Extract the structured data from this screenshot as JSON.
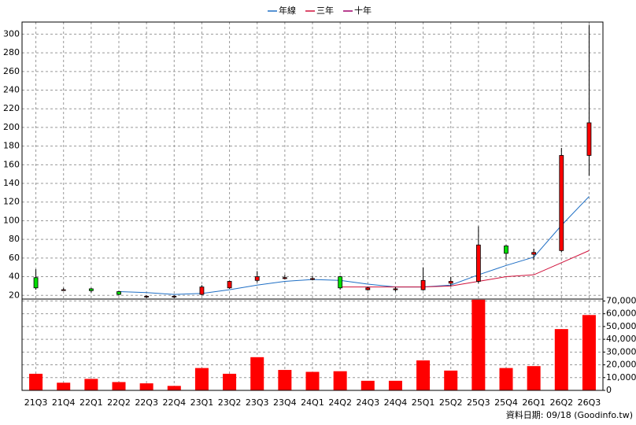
{
  "chart_data": {
    "type": "candlestick",
    "legend": "top",
    "categories": [
      "21Q3",
      "21Q4",
      "22Q1",
      "22Q2",
      "22Q3",
      "22Q4",
      "23Q1",
      "23Q2",
      "23Q3",
      "23Q4",
      "24Q1",
      "24Q2",
      "24Q3",
      "24Q4",
      "25Q1",
      "25Q2",
      "25Q3",
      "25Q4",
      "26Q1",
      "26Q2",
      "26Q3"
    ],
    "open": [
      39,
      26,
      27,
      24,
      19,
      19,
      21,
      28,
      36,
      38,
      37,
      40,
      26,
      26,
      26,
      33,
      35,
      73,
      64,
      68,
      170
    ],
    "high": [
      48,
      28,
      28,
      25,
      20,
      20,
      31,
      36,
      46,
      42,
      41,
      41,
      29,
      29,
      50,
      40,
      94,
      74,
      70,
      178,
      310
    ],
    "low": [
      26,
      25,
      23,
      20,
      17,
      17,
      20,
      27,
      34,
      37,
      36,
      26,
      25,
      24,
      25,
      30,
      33,
      58,
      58,
      66,
      148
    ],
    "close": [
      28,
      26,
      25,
      21,
      19,
      19,
      29,
      35,
      40,
      39,
      38,
      28,
      28,
      27,
      36,
      35,
      74,
      65,
      66,
      170,
      205
    ],
    "up_color": "#ff0000",
    "down_color": "#00dd00",
    "series": [
      {
        "name": "年線",
        "color": "#1f6fc5",
        "values": [
          null,
          null,
          null,
          24,
          23,
          21,
          22,
          26,
          31,
          35,
          37,
          36,
          32,
          29,
          29,
          31,
          42,
          52,
          61,
          95,
          126
        ]
      },
      {
        "name": "三年",
        "color": "#d0103a",
        "values": [
          null,
          null,
          null,
          null,
          null,
          null,
          null,
          null,
          null,
          null,
          null,
          29,
          29,
          29,
          29,
          30,
          35,
          40,
          42,
          55,
          68
        ]
      },
      {
        "name": "十年",
        "color": "#a0006a",
        "values": [
          null,
          null,
          null,
          null,
          null,
          null,
          null,
          null,
          null,
          null,
          null,
          null,
          null,
          null,
          null,
          null,
          null,
          null,
          null,
          null,
          null
        ]
      }
    ],
    "ylim": [
      16,
      313
    ],
    "yticks": [
      20,
      40,
      60,
      80,
      100,
      120,
      140,
      160,
      180,
      200,
      220,
      240,
      260,
      280,
      300
    ],
    "grid": true,
    "volume": {
      "color": "#ff0000",
      "values": [
        13000,
        6000,
        9000,
        6500,
        5500,
        3500,
        17500,
        13000,
        26000,
        16000,
        14500,
        15000,
        7500,
        7500,
        23500,
        15500,
        71000,
        17500,
        19000,
        48000,
        59000
      ],
      "ylim": [
        0,
        71500
      ],
      "yticks": [
        0,
        {
          "value": 10000,
          "label": "10,000"
        },
        {
          "value": 20000,
          "label": "20,000"
        },
        {
          "value": 30000,
          "label": "30,000"
        },
        {
          "value": 40000,
          "label": "40,000"
        },
        {
          "value": 50000,
          "label": "50,000"
        },
        {
          "value": 60000,
          "label": "60,000"
        },
        {
          "value": 70000,
          "label": "70,000"
        }
      ]
    },
    "source": "資料日期: 09/18 (Goodinfo.tw)"
  }
}
